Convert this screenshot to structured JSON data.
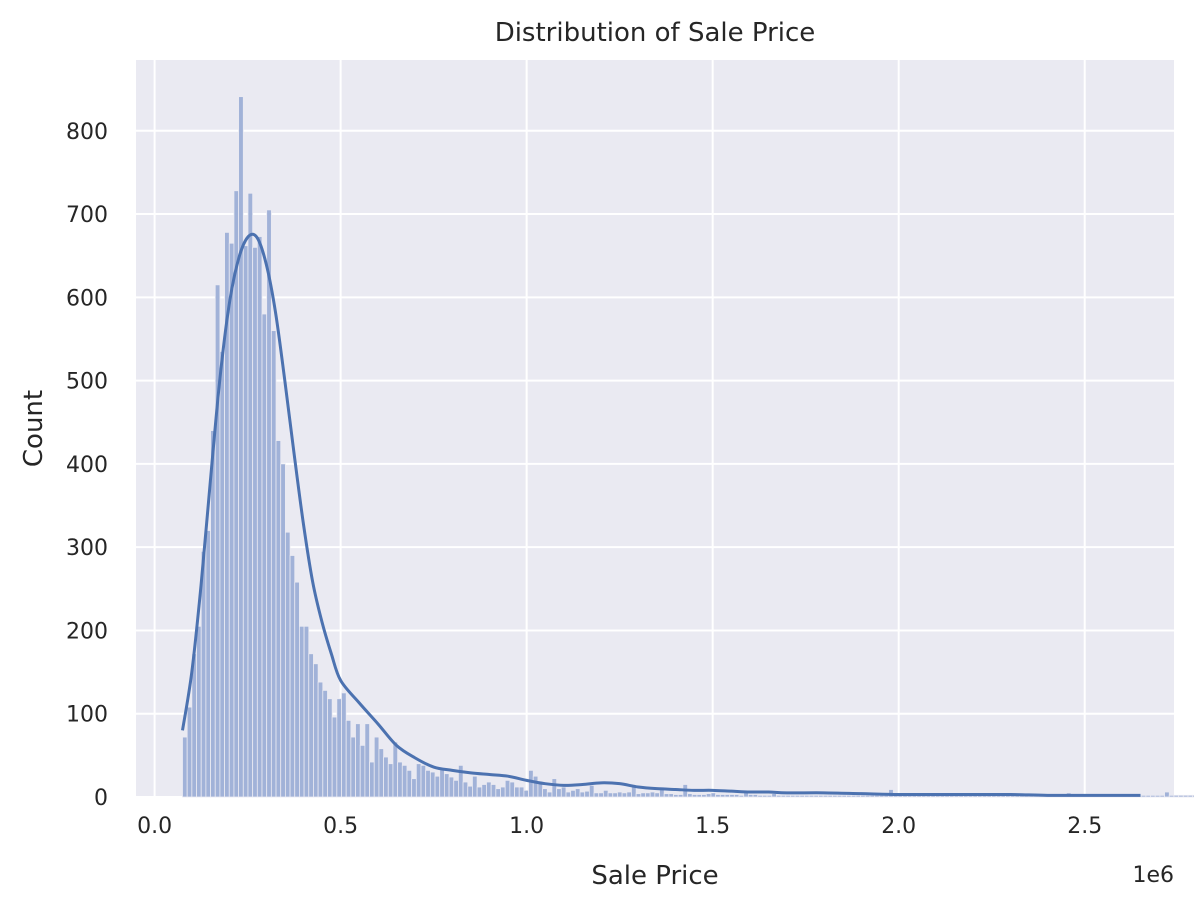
{
  "chart_data": {
    "type": "histogram",
    "title": "Distribution of Sale Price",
    "xlabel": "Sale Price",
    "ylabel": "Count",
    "x_offset_text": "1e6",
    "xlim": [
      -0.05,
      2.74
    ],
    "ylim": [
      0,
      885
    ],
    "xticks": [
      0.0,
      0.5,
      1.0,
      1.5,
      2.0,
      2.5
    ],
    "xtick_labels": [
      "0.0",
      "0.5",
      "1.0",
      "1.5",
      "2.0",
      "2.5"
    ],
    "yticks": [
      0,
      100,
      200,
      300,
      400,
      500,
      600,
      700,
      800
    ],
    "ytick_labels": [
      "0",
      "100",
      "200",
      "300",
      "400",
      "500",
      "600",
      "700",
      "800"
    ],
    "grid": true,
    "colors": {
      "background": "#eaeaf2",
      "grid": "#ffffff",
      "bar_fill": "#a1b2d8",
      "bar_edge": "#eaeaf2",
      "kde_line": "#4c72b0",
      "text": "#262626"
    },
    "bin_start": 0.075,
    "bin_width": 0.01257,
    "counts": [
      72,
      108,
      172,
      205,
      295,
      320,
      440,
      615,
      535,
      678,
      665,
      728,
      841,
      662,
      725,
      660,
      673,
      580,
      705,
      560,
      428,
      400,
      318,
      290,
      258,
      205,
      205,
      172,
      160,
      138,
      128,
      118,
      96,
      118,
      125,
      92,
      72,
      88,
      62,
      88,
      42,
      72,
      58,
      48,
      40,
      66,
      42,
      38,
      32,
      22,
      40,
      38,
      32,
      30,
      25,
      35,
      28,
      24,
      20,
      38,
      18,
      13,
      25,
      12,
      15,
      18,
      15,
      10,
      12,
      20,
      18,
      12,
      12,
      8,
      32,
      25,
      18,
      10,
      6,
      22,
      10,
      12,
      6,
      8,
      10,
      6,
      7,
      14,
      5,
      5,
      8,
      5,
      5,
      6,
      5,
      6,
      12,
      4,
      5,
      5,
      6,
      5,
      12,
      4,
      4,
      3,
      3,
      15,
      4,
      3,
      3,
      3,
      4,
      5,
      3,
      3,
      3,
      3,
      3,
      2,
      8,
      3,
      3,
      2,
      2,
      2,
      4,
      2,
      2,
      2,
      2,
      2,
      2,
      2,
      2,
      2,
      2,
      2,
      2,
      2,
      2,
      2,
      2,
      2,
      2,
      2,
      2,
      2,
      2,
      2,
      2,
      9,
      2,
      2,
      2,
      2,
      2,
      2,
      2,
      2,
      2,
      2,
      2,
      2,
      2,
      2,
      2,
      2,
      2,
      2,
      2,
      2,
      2,
      2,
      2,
      2,
      2,
      2,
      2,
      2,
      2,
      2,
      2,
      2,
      2,
      2,
      2,
      2,
      2,
      5,
      2,
      2,
      2,
      2,
      2,
      2,
      2,
      2,
      2,
      2,
      2,
      2,
      2,
      2,
      2,
      2,
      2,
      2,
      2,
      2,
      6,
      2,
      2,
      2,
      2,
      2,
      2,
      2,
      2,
      2,
      2,
      2,
      5
    ],
    "kde": {
      "x": [
        0.075,
        0.1,
        0.125,
        0.15,
        0.175,
        0.2,
        0.225,
        0.25,
        0.275,
        0.3,
        0.325,
        0.35,
        0.375,
        0.4,
        0.425,
        0.45,
        0.475,
        0.5,
        0.55,
        0.6,
        0.65,
        0.7,
        0.75,
        0.8,
        0.85,
        0.9,
        0.95,
        1.0,
        1.05,
        1.1,
        1.15,
        1.2,
        1.25,
        1.3,
        1.35,
        1.4,
        1.45,
        1.5,
        1.55,
        1.6,
        1.65,
        1.7,
        1.8,
        1.9,
        2.0,
        2.1,
        2.2,
        2.3,
        2.4,
        2.5,
        2.6,
        2.65
      ],
      "y": [
        80,
        150,
        255,
        380,
        500,
        590,
        645,
        672,
        672,
        640,
        582,
        500,
        412,
        328,
        258,
        210,
        172,
        140,
        113,
        88,
        62,
        47,
        36,
        32,
        29,
        27,
        25,
        20,
        16,
        14,
        15,
        17,
        16,
        12,
        10,
        9,
        8,
        8,
        7,
        6,
        6,
        5,
        5,
        4,
        3,
        3,
        3,
        3,
        2,
        2,
        2,
        2
      ]
    }
  }
}
